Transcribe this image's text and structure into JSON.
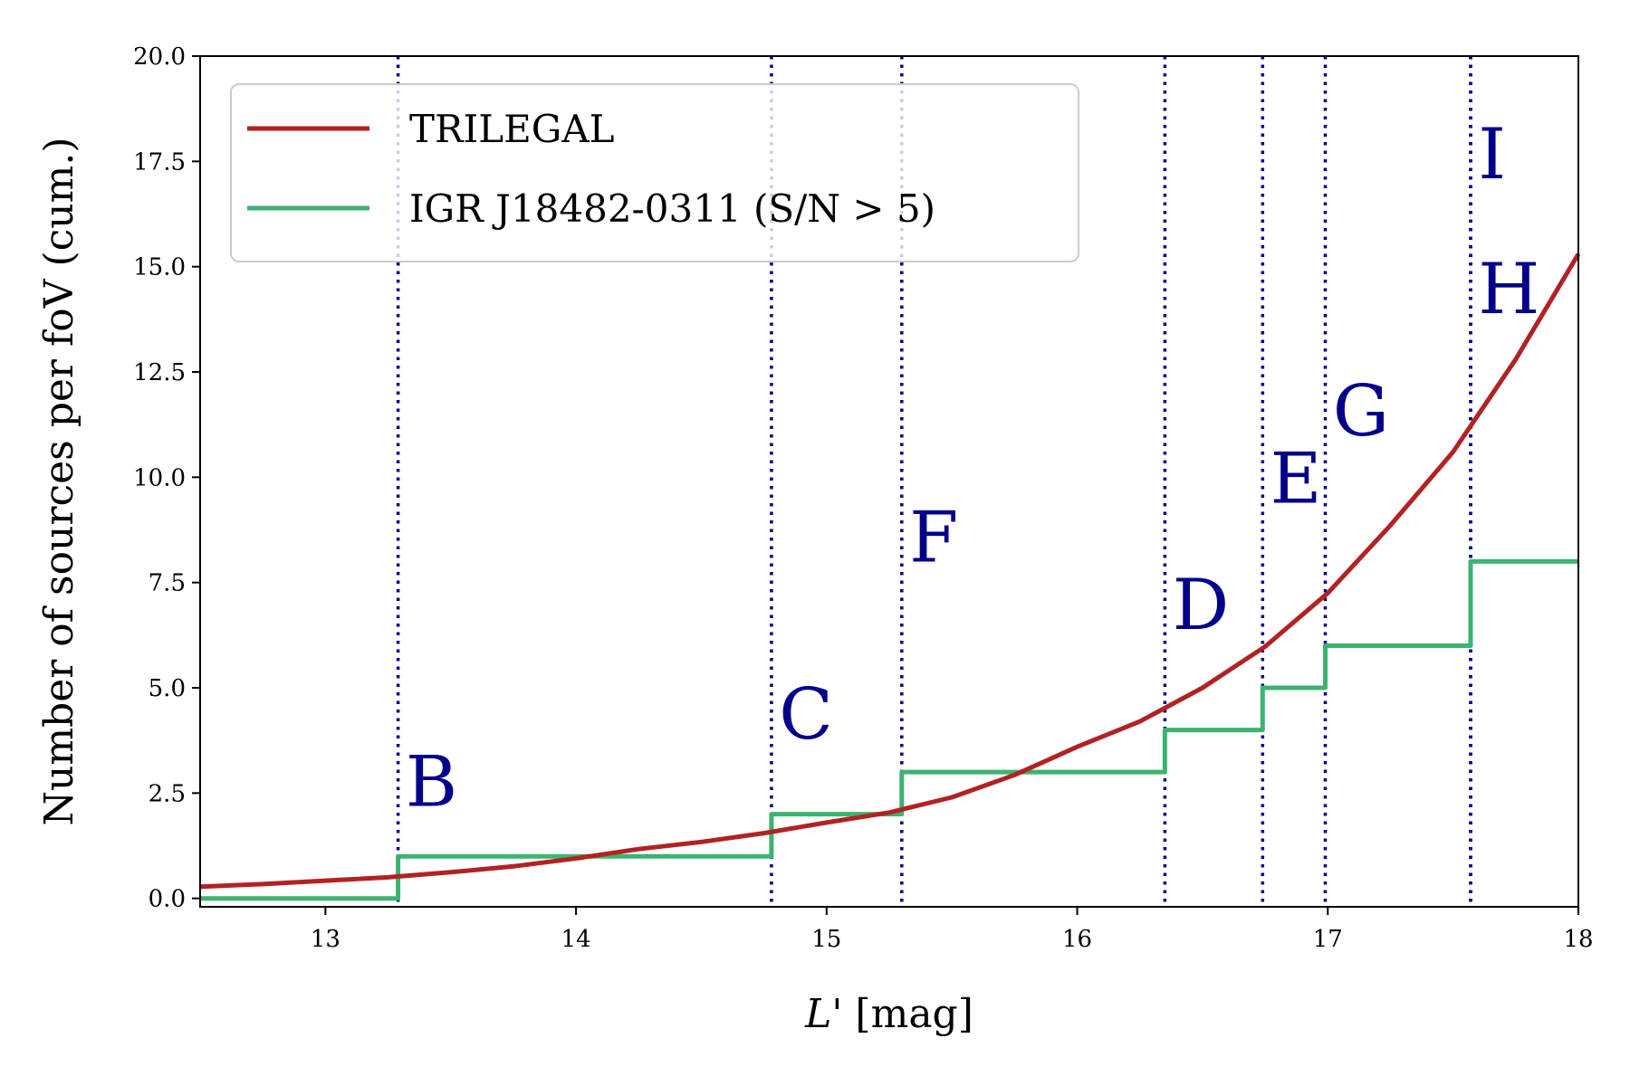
{
  "chart_data": {
    "type": "line",
    "xlabel_italic": "L'",
    "xlabel_rest": " [mag]",
    "ylabel": "Number of sources per foV (cum.)",
    "xlim": [
      12.5,
      18
    ],
    "ylim": [
      -0.2,
      20
    ],
    "x_ticks": [
      13,
      14,
      15,
      16,
      17,
      18
    ],
    "x_tick_labels": [
      "13",
      "14",
      "15",
      "16",
      "17",
      "18"
    ],
    "y_ticks": [
      0,
      2.5,
      5,
      7.5,
      10,
      12.5,
      15,
      17.5,
      20
    ],
    "y_tick_labels": [
      "0.0",
      "2.5",
      "5.0",
      "7.5",
      "10.0",
      "12.5",
      "15.0",
      "17.5",
      "20.0"
    ],
    "legend_position": "top-left",
    "grid": false,
    "series": [
      {
        "name": "TRILEGAL",
        "kind": "curve",
        "color": "#b22222",
        "x": [
          12.5,
          12.75,
          13.0,
          13.25,
          13.5,
          13.75,
          14.0,
          14.25,
          14.5,
          14.75,
          15.0,
          15.25,
          15.5,
          15.75,
          16.0,
          16.25,
          16.5,
          16.75,
          17.0,
          17.25,
          17.5,
          17.75,
          18.0
        ],
        "values": [
          0.28,
          0.34,
          0.42,
          0.5,
          0.62,
          0.76,
          0.95,
          1.17,
          1.34,
          1.55,
          1.8,
          2.04,
          2.4,
          2.93,
          3.6,
          4.2,
          5.0,
          5.98,
          7.25,
          8.86,
          10.6,
          12.8,
          15.3
        ]
      },
      {
        "name": "IGR J18482-0311 (S/N > 5)",
        "kind": "step",
        "color": "#3cb371",
        "x": [
          12.5,
          13.29,
          13.29,
          14.78,
          14.78,
          15.3,
          15.3,
          16.35,
          16.35,
          16.74,
          16.74,
          16.99,
          16.99,
          17.57,
          17.57,
          18.0
        ],
        "values": [
          0,
          0,
          1,
          1,
          2,
          2,
          3,
          3,
          4,
          4,
          5,
          5,
          6,
          6,
          8,
          8
        ]
      }
    ],
    "vertical_lines": {
      "color": "#00008b",
      "items": [
        {
          "label": "B",
          "x": 13.29,
          "label_x": 13.32,
          "label_y": 2.2
        },
        {
          "label": "C",
          "x": 14.78,
          "label_x": 14.81,
          "label_y": 3.8
        },
        {
          "label": "F",
          "x": 15.3,
          "label_x": 15.33,
          "label_y": 8.0
        },
        {
          "label": "D",
          "x": 16.35,
          "label_x": 16.38,
          "label_y": 6.4
        },
        {
          "label": "E",
          "x": 16.74,
          "label_x": 16.77,
          "label_y": 9.4
        },
        {
          "label": "G",
          "x": 16.99,
          "label_x": 17.02,
          "label_y": 11.0
        },
        {
          "label": "H",
          "x": 17.57,
          "label_x": 17.6,
          "label_y": 13.9
        },
        {
          "label": "I",
          "x": 17.57,
          "label_x": 17.6,
          "label_y": 17.1
        }
      ]
    }
  }
}
